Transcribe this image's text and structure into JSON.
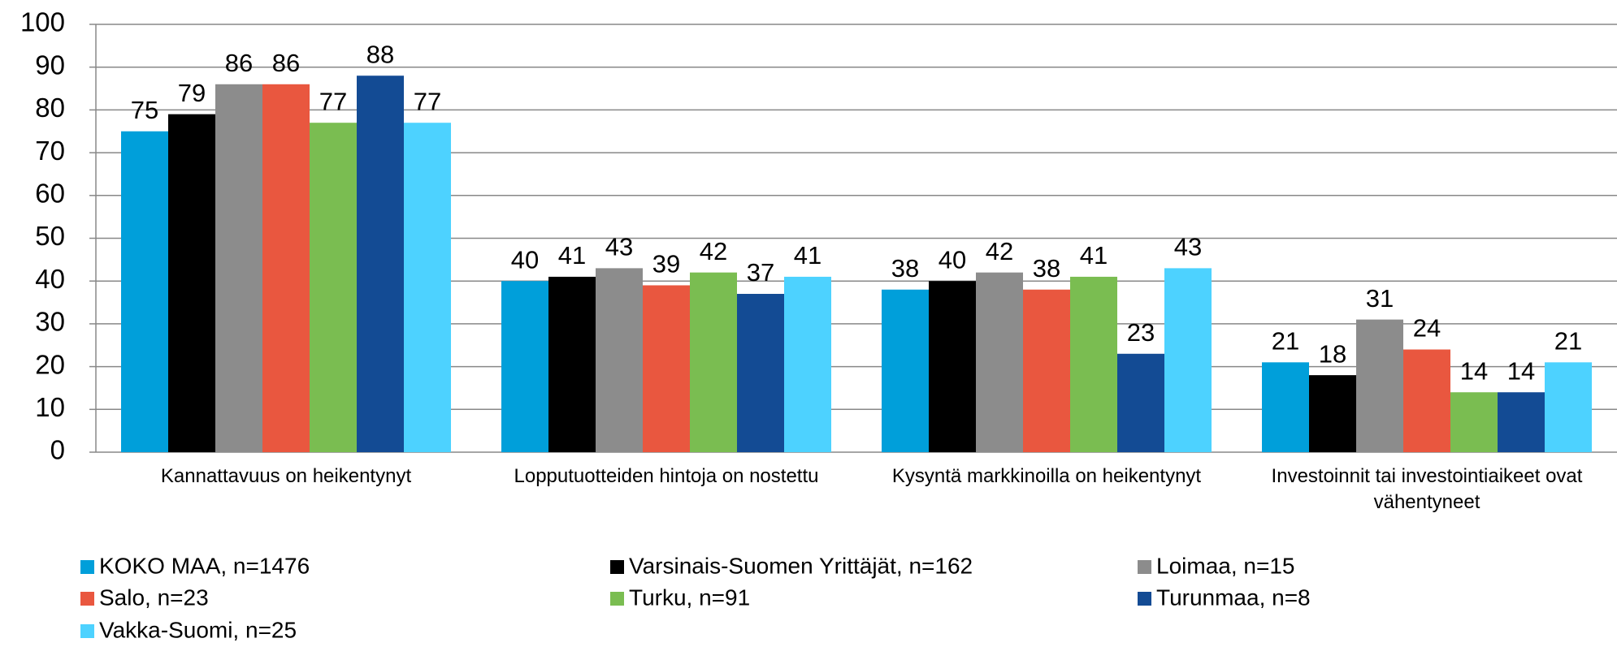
{
  "chart_data": {
    "type": "bar",
    "categories": [
      "Kannattavuus on heikentynyt",
      "Lopputuotteiden hintoja on nostettu",
      "Kysyntä markkinoilla on heikentynyt",
      "Investoinnit tai investointiaikeet ovat vähentyneet"
    ],
    "series": [
      {
        "name": "KOKO MAA, n=1476",
        "color": "#009fda",
        "values": [
          75,
          40,
          38,
          21
        ]
      },
      {
        "name": "Varsinais-Suomen Yrittäjät, n=162",
        "color": "#000000",
        "values": [
          79,
          41,
          40,
          18
        ]
      },
      {
        "name": "Loimaa, n=15",
        "color": "#8c8c8c",
        "values": [
          86,
          43,
          42,
          31
        ]
      },
      {
        "name": "Salo, n=23",
        "color": "#e9573f",
        "values": [
          86,
          39,
          38,
          24
        ]
      },
      {
        "name": "Turku, n=91",
        "color": "#7abd51",
        "values": [
          77,
          42,
          41,
          14
        ]
      },
      {
        "name": "Turunmaa, n=8",
        "color": "#134b94",
        "values": [
          88,
          37,
          23,
          14
        ]
      },
      {
        "name": "Vakka-Suomi, n=25",
        "color": "#4dd2ff",
        "values": [
          77,
          41,
          43,
          21
        ]
      }
    ],
    "ylim": [
      0,
      100
    ],
    "yticks": [
      0,
      10,
      20,
      30,
      40,
      50,
      60,
      70,
      80,
      90,
      100
    ],
    "grid": true,
    "legend": "bottom"
  }
}
